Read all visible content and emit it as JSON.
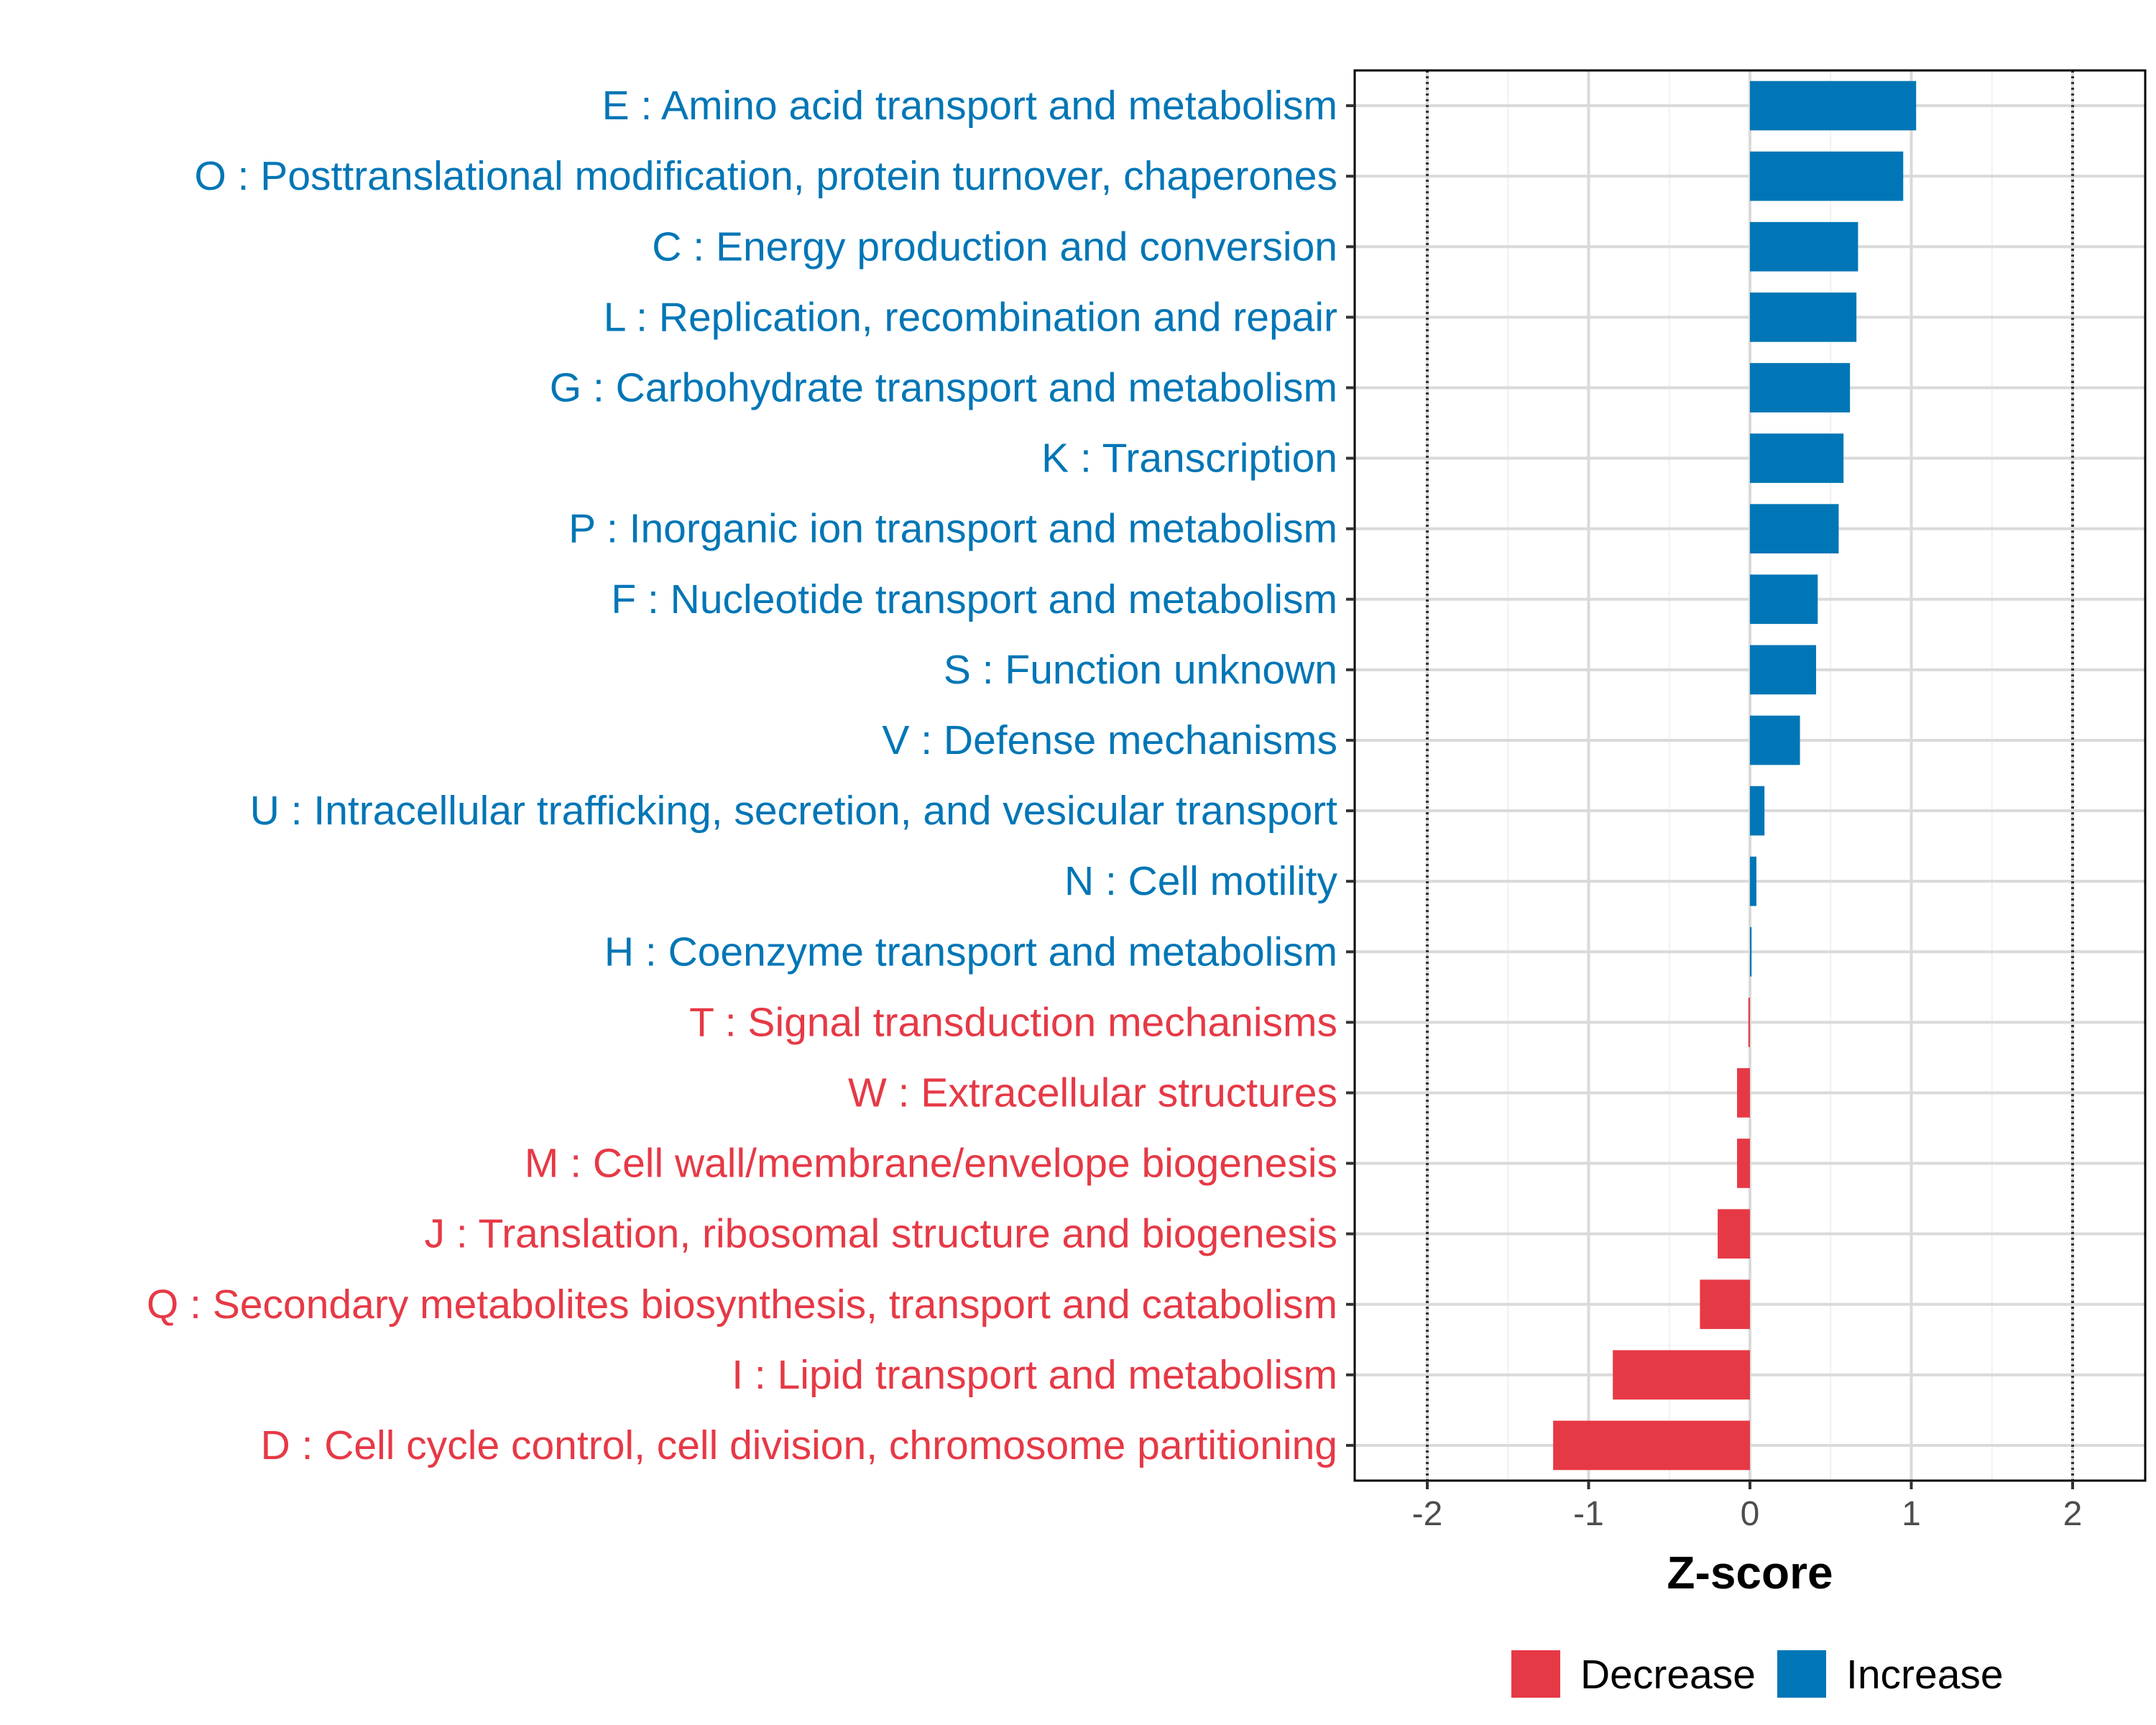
{
  "chart_data": {
    "type": "bar",
    "orientation": "horizontal",
    "xlabel": "Z-score",
    "ylabel": "",
    "xlim": [
      -2.45,
      2.45
    ],
    "xticks": [
      -2,
      -1,
      0,
      1,
      2
    ],
    "xtick_labels": [
      "-2",
      "-1",
      "0",
      "1",
      "2"
    ],
    "reference_lines": [
      -2,
      2
    ],
    "grid": true,
    "categories": [
      "E : Amino acid transport and metabolism",
      "O : Posttranslational modification, protein turnover, chaperones",
      "C : Energy production and conversion",
      "L : Replication, recombination and repair",
      "G : Carbohydrate transport and metabolism",
      "K : Transcription",
      "P : Inorganic ion transport and metabolism",
      "F : Nucleotide transport and metabolism",
      "S : Function unknown",
      "V : Defense mechanisms",
      "U : Intracellular trafficking, secretion, and vesicular transport",
      "N : Cell motility",
      "H : Coenzyme transport and metabolism",
      "T : Signal transduction mechanisms",
      "W : Extracellular structures",
      "M : Cell wall/membrane/envelope biogenesis",
      "J : Translation, ribosomal structure and biogenesis",
      "Q : Secondary metabolites biosynthesis, transport and catabolism",
      "I : Lipid transport and metabolism",
      "D : Cell cycle control, cell division, chromosome partitioning"
    ],
    "values": [
      1.03,
      0.95,
      0.67,
      0.66,
      0.62,
      0.58,
      0.55,
      0.42,
      0.41,
      0.31,
      0.09,
      0.04,
      0.01,
      -0.01,
      -0.08,
      -0.08,
      -0.2,
      -0.31,
      -0.85,
      -1.22
    ],
    "groups": [
      "Increase",
      "Increase",
      "Increase",
      "Increase",
      "Increase",
      "Increase",
      "Increase",
      "Increase",
      "Increase",
      "Increase",
      "Increase",
      "Increase",
      "Increase",
      "Decrease",
      "Decrease",
      "Decrease",
      "Decrease",
      "Decrease",
      "Decrease",
      "Decrease"
    ],
    "legend": {
      "position": "bottom",
      "entries": [
        {
          "label": "Decrease",
          "color": "#e63946"
        },
        {
          "label": "Increase",
          "color": "#0076b6"
        }
      ]
    },
    "colors": {
      "Increase": "#0076b6",
      "Decrease": "#e63946"
    }
  }
}
